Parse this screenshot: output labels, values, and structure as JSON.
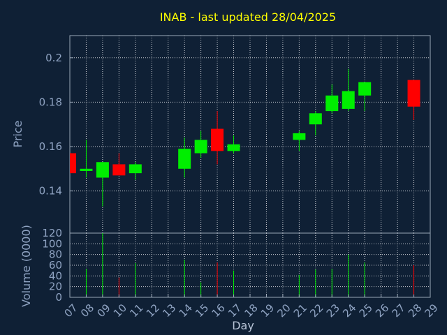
{
  "colors": {
    "background": "#0f2035",
    "panel_border": "#9aa7b8",
    "grid": "#c8ccd2",
    "title": "#ffff00",
    "axis_text": "#8fa3c2",
    "up": "#00ee00",
    "down": "#ff0000"
  },
  "chart_data": {
    "type": "candlestick",
    "title": "INAB - last updated 28/04/2025",
    "xlabel": "Day",
    "x_ticks": [
      "07",
      "08",
      "09",
      "10",
      "11",
      "12",
      "13",
      "14",
      "15",
      "16",
      "17",
      "18",
      "19",
      "20",
      "21",
      "22",
      "23",
      "24",
      "25",
      "26",
      "27",
      "28",
      "29"
    ],
    "price_panel": {
      "ylabel": "Price",
      "ylim": [
        0.121,
        0.21
      ],
      "y_ticks": [
        {
          "value": 0.14,
          "label": "0.14"
        },
        {
          "value": 0.16,
          "label": "0.16"
        },
        {
          "value": 0.18,
          "label": "0.18"
        },
        {
          "value": 0.2,
          "label": "0.2"
        }
      ],
      "candles": [
        {
          "day": 7,
          "open": 0.157,
          "high": 0.157,
          "low": 0.148,
          "close": 0.148
        },
        {
          "day": 8,
          "open": 0.149,
          "high": 0.163,
          "low": 0.146,
          "close": 0.15
        },
        {
          "day": 9,
          "open": 0.146,
          "high": 0.153,
          "low": 0.133,
          "close": 0.153
        },
        {
          "day": 10,
          "open": 0.152,
          "high": 0.157,
          "low": 0.147,
          "close": 0.147
        },
        {
          "day": 11,
          "open": 0.148,
          "high": 0.153,
          "low": 0.145,
          "close": 0.152
        },
        {
          "day": 14,
          "open": 0.15,
          "high": 0.164,
          "low": 0.146,
          "close": 0.159
        },
        {
          "day": 15,
          "open": 0.157,
          "high": 0.167,
          "low": 0.155,
          "close": 0.163
        },
        {
          "day": 16,
          "open": 0.168,
          "high": 0.176,
          "low": 0.152,
          "close": 0.158
        },
        {
          "day": 17,
          "open": 0.158,
          "high": 0.165,
          "low": 0.157,
          "close": 0.161
        },
        {
          "day": 21,
          "open": 0.163,
          "high": 0.167,
          "low": 0.158,
          "close": 0.166
        },
        {
          "day": 22,
          "open": 0.17,
          "high": 0.176,
          "low": 0.165,
          "close": 0.175
        },
        {
          "day": 23,
          "open": 0.176,
          "high": 0.188,
          "low": 0.175,
          "close": 0.183
        },
        {
          "day": 24,
          "open": 0.177,
          "high": 0.195,
          "low": 0.176,
          "close": 0.185
        },
        {
          "day": 25,
          "open": 0.183,
          "high": 0.189,
          "low": 0.176,
          "close": 0.189
        },
        {
          "day": 28,
          "open": 0.19,
          "high": 0.19,
          "low": 0.172,
          "close": 0.178
        }
      ]
    },
    "volume_panel": {
      "ylabel": "Volume (0000)",
      "ylim": [
        0,
        120
      ],
      "y_ticks": [
        {
          "value": 0,
          "label": "0"
        },
        {
          "value": 20,
          "label": "20"
        },
        {
          "value": 40,
          "label": "40"
        },
        {
          "value": 60,
          "label": "60"
        },
        {
          "value": 80,
          "label": "80"
        },
        {
          "value": 100,
          "label": "100"
        },
        {
          "value": 120,
          "label": "120"
        }
      ],
      "bars": [
        {
          "day": 7,
          "volume": 0,
          "direction": "down"
        },
        {
          "day": 8,
          "volume": 53,
          "direction": "up"
        },
        {
          "day": 9,
          "volume": 120,
          "direction": "up"
        },
        {
          "day": 10,
          "volume": 37,
          "direction": "down"
        },
        {
          "day": 11,
          "volume": 64,
          "direction": "up"
        },
        {
          "day": 14,
          "volume": 70,
          "direction": "up"
        },
        {
          "day": 15,
          "volume": 28,
          "direction": "up"
        },
        {
          "day": 16,
          "volume": 65,
          "direction": "down"
        },
        {
          "day": 17,
          "volume": 50,
          "direction": "up"
        },
        {
          "day": 21,
          "volume": 42,
          "direction": "up"
        },
        {
          "day": 22,
          "volume": 52,
          "direction": "up"
        },
        {
          "day": 23,
          "volume": 53,
          "direction": "up"
        },
        {
          "day": 24,
          "volume": 80,
          "direction": "up"
        },
        {
          "day": 25,
          "volume": 65,
          "direction": "up"
        },
        {
          "day": 28,
          "volume": 60,
          "direction": "down"
        }
      ]
    },
    "grid": true,
    "legend": "none"
  }
}
